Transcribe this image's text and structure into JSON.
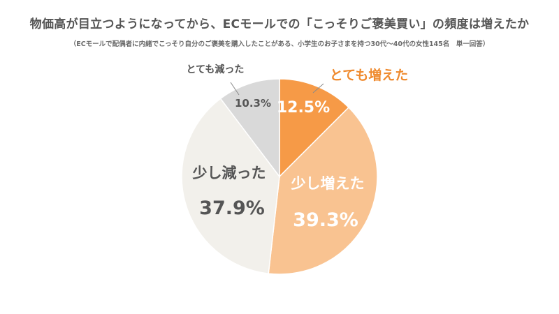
{
  "header": {
    "title": "物価高が目立つようになってから、ECモールでの「こっそりご褒美買い」の頻度は増えたか",
    "subtitle": "（ECモールで配偶者に内緒でこっそり自分のご褒美を購入したことがある、小学生のお子さまを持つ30代〜40代の女性145名　単一回答）"
  },
  "chart_data": {
    "type": "pie",
    "start_angle_deg": 0,
    "direction": "clockwise",
    "slices": [
      {
        "label": "とても増えた",
        "value": 12.5,
        "value_label": "12.5%",
        "color": "#F69A47",
        "label_color": "#EF8A2E",
        "value_color": "#ffffff"
      },
      {
        "label": "少し増えた",
        "value": 39.3,
        "value_label": "39.3%",
        "color": "#F9C391",
        "label_color": "#ffffff",
        "value_color": "#ffffff"
      },
      {
        "label": "少し減った",
        "value": 37.9,
        "value_label": "37.9%",
        "color": "#F2F0EB",
        "label_color": "#555555",
        "value_color": "#555555"
      },
      {
        "label": "とても減った",
        "value": 10.3,
        "value_label": "10.3%",
        "color": "#D9D9D9",
        "label_color": "#555555",
        "value_color": "#555555"
      }
    ]
  }
}
